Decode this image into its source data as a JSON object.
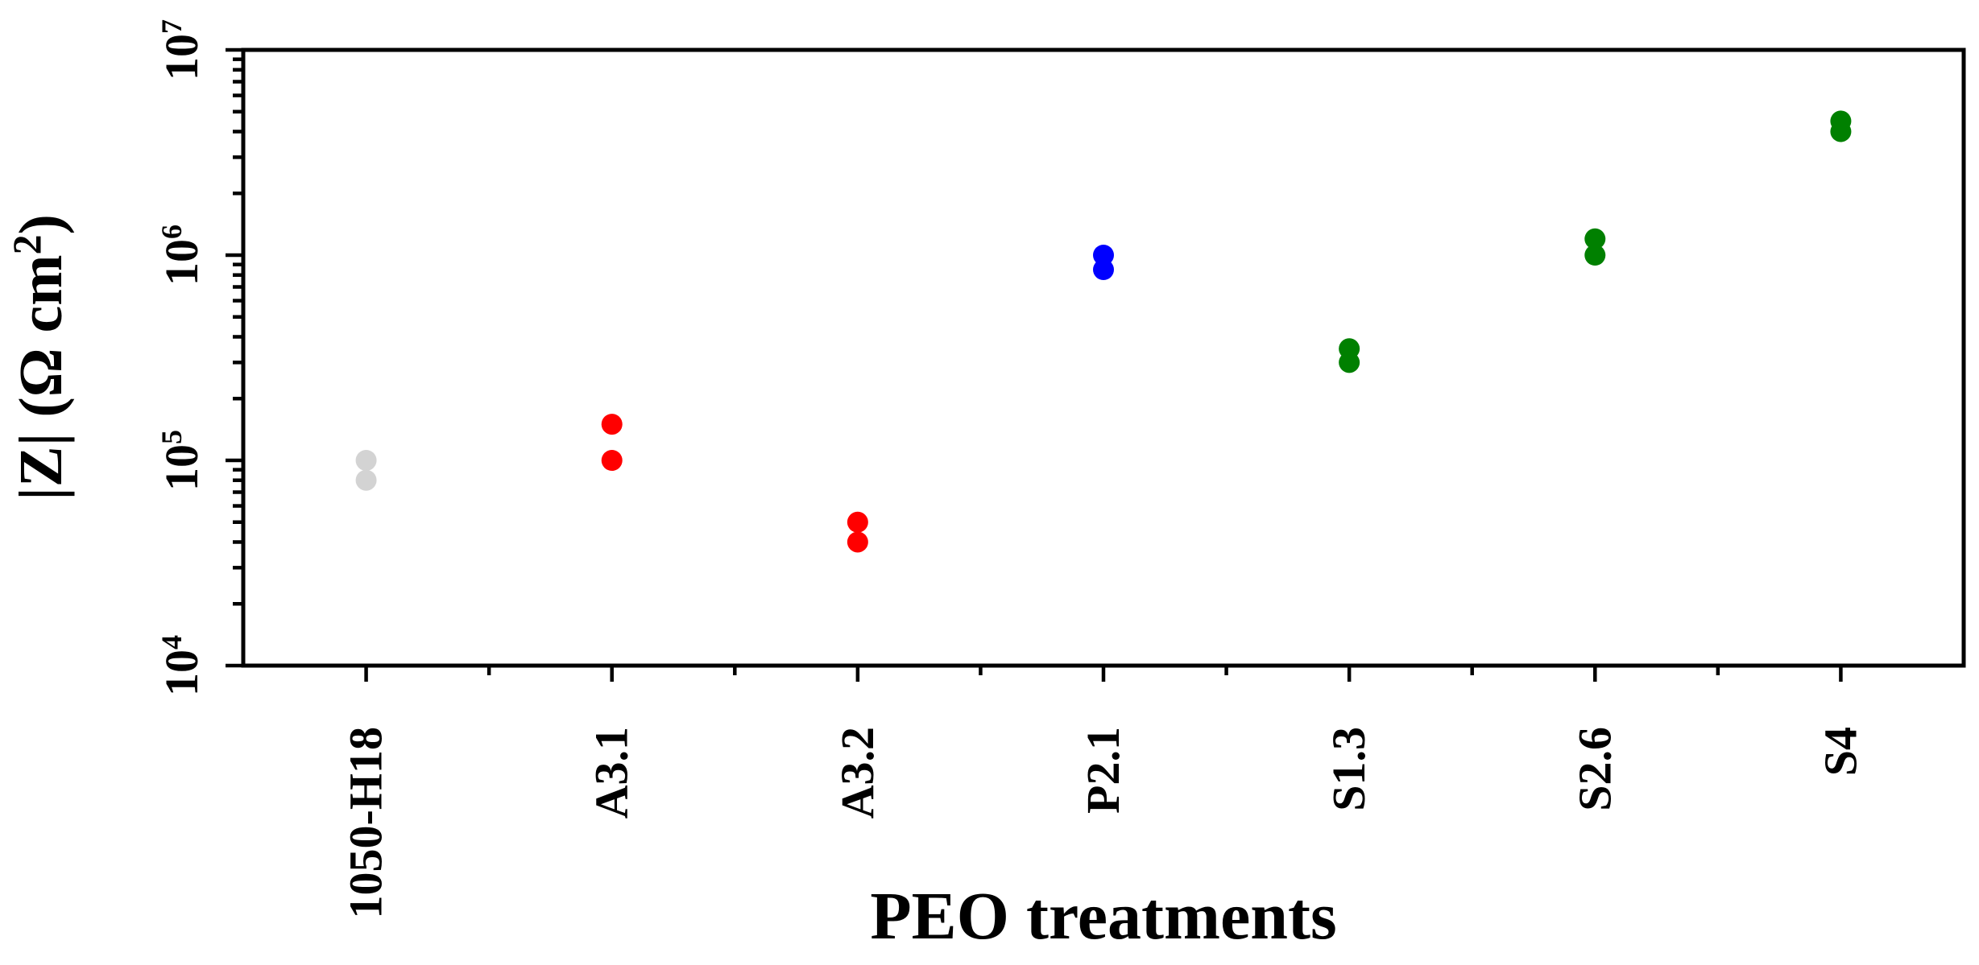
{
  "chart_data": {
    "type": "scatter",
    "title": "",
    "xlabel": "PEO treatments",
    "ylabel_pre": "|Z| (Ω cm",
    "ylabel_sup": "2",
    "ylabel_post": ")",
    "yscale": "log",
    "ylim": [
      10000,
      10000000
    ],
    "ytick_exponents": [
      4,
      5,
      6,
      7
    ],
    "ytick_base": "10",
    "grid": false,
    "legend": "none",
    "axis_color": "#000000",
    "background_color": "#ffffff",
    "marker_shape": "circle",
    "categories": [
      "1050-H18",
      "A3.1",
      "A3.2",
      "P2.1",
      "S1.3",
      "S2.6",
      "S4"
    ],
    "groups": [
      {
        "category": "1050-H18",
        "color": "#d3d3d3",
        "values": [
          100000,
          80000
        ]
      },
      {
        "category": "A3.1",
        "color": "#ff0000",
        "values": [
          150000,
          100000
        ]
      },
      {
        "category": "A3.2",
        "color": "#ff0000",
        "values": [
          50000,
          40000
        ]
      },
      {
        "category": "P2.1",
        "color": "#0000ff",
        "values": [
          1000000,
          850000
        ]
      },
      {
        "category": "S1.3",
        "color": "#008000",
        "values": [
          350000,
          300000
        ]
      },
      {
        "category": "S2.6",
        "color": "#008000",
        "values": [
          1200000,
          1000000
        ]
      },
      {
        "category": "S4",
        "color": "#008000",
        "values": [
          4500000,
          4000000
        ]
      }
    ]
  }
}
